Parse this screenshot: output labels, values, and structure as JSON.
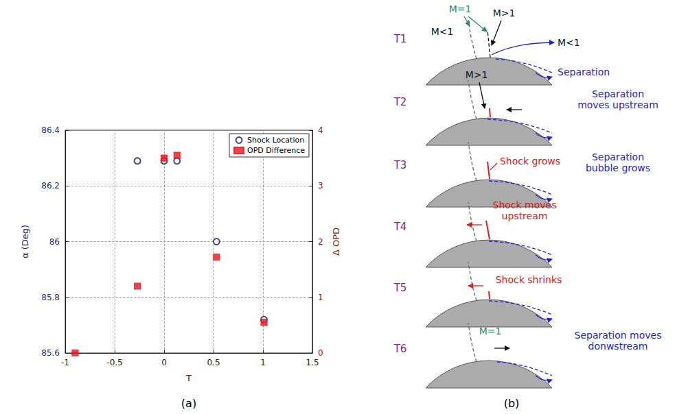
{
  "chart_data": {
    "type": "scatter",
    "x_label": "T",
    "y_label": "α (Deg)",
    "y2_label": "Δ OPD",
    "xlim": [
      -1,
      1.5
    ],
    "xticks": [
      -1,
      -0.5,
      0,
      0.5,
      1,
      1.5
    ],
    "ylim": [
      85.6,
      86.4
    ],
    "yticks": [
      85.6,
      85.8,
      86,
      86.2,
      86.4
    ],
    "y2lim": [
      0,
      4
    ],
    "y2ticks": [
      0,
      1,
      2,
      3,
      4
    ],
    "grid": true,
    "legend": "upper right",
    "series": [
      {
        "name": "Shock Location",
        "color": "#1a1a66",
        "marker": "circle_open",
        "x": [
          -0.27,
          0,
          0.13,
          0.53,
          1.01
        ],
        "values": [
          86.29,
          86.29,
          86.29,
          86.0,
          85.72
        ]
      },
      {
        "name": "OPD Difference",
        "color": "#e8141c",
        "marker": "square",
        "axis": "y2",
        "x": [
          -0.9,
          -0.27,
          0,
          0.13,
          0.53,
          1.01
        ],
        "values": [
          0,
          1.2,
          3.5,
          3.55,
          1.72,
          0.55
        ]
      }
    ]
  },
  "captions": [
    "(a)",
    "(b)"
  ],
  "diagram": {
    "rows": [
      {
        "label": "T1",
        "texts": [
          "M=1",
          "M>1",
          "M<1",
          "M<1",
          "Separation"
        ]
      },
      {
        "label": "T2",
        "texts": [
          "M>1",
          "Separation moves upstream"
        ]
      },
      {
        "label": "T3",
        "texts": [
          "Shock grows",
          "Separation bubble grows"
        ]
      },
      {
        "label": "T4",
        "texts": [
          "Shock moves upstream"
        ]
      },
      {
        "label": "T5",
        "texts": [
          "Shock shrinks"
        ]
      },
      {
        "label": "T6",
        "texts": [
          "M=1",
          "Separation moves donwstream"
        ]
      }
    ]
  }
}
